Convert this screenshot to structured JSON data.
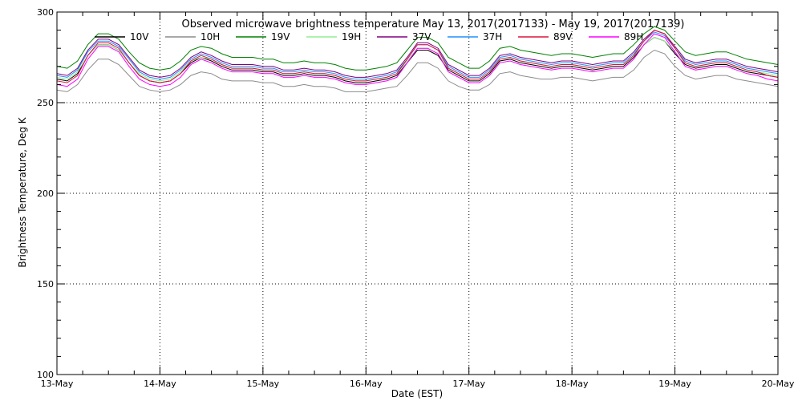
{
  "chart_data": {
    "type": "line",
    "title": "Observed microwave brightness temperature May 13, 2017(2017133) - May 19, 2017(2017139)",
    "xlabel": "Date (EST)",
    "ylabel": "Brightness Temperature, Deg K",
    "x_ticks": [
      "13-May",
      "14-May",
      "15-May",
      "16-May",
      "17-May",
      "18-May",
      "19-May",
      "20-May"
    ],
    "x_range_days": [
      0,
      7
    ],
    "ylim": [
      100,
      300
    ],
    "y_ticks": [
      100,
      150,
      200,
      250,
      300
    ],
    "grid": "dotted, major ticks",
    "legend_placement": "top",
    "x_days": [
      0,
      0.1,
      0.2,
      0.3,
      0.4,
      0.5,
      0.6,
      0.7,
      0.8,
      0.9,
      1.0,
      1.1,
      1.2,
      1.3,
      1.4,
      1.5,
      1.6,
      1.7,
      1.8,
      1.9,
      2.0,
      2.1,
      2.2,
      2.3,
      2.4,
      2.5,
      2.6,
      2.7,
      2.8,
      2.9,
      3.0,
      3.1,
      3.2,
      3.3,
      3.4,
      3.5,
      3.6,
      3.7,
      3.8,
      3.9,
      4.0,
      4.1,
      4.2,
      4.3,
      4.4,
      4.5,
      4.6,
      4.7,
      4.8,
      4.9,
      5.0,
      5.1,
      5.2,
      5.3,
      5.4,
      5.5,
      5.6,
      5.7,
      5.8,
      5.9,
      6.0,
      6.1,
      6.2,
      6.3,
      6.4,
      6.5,
      6.6,
      6.7,
      6.8,
      6.9,
      7.0
    ],
    "series": [
      {
        "name": "10V",
        "color": "#000000",
        "values": [
          263,
          262,
          266,
          276,
          282,
          282,
          279,
          272,
          265,
          262,
          261,
          262,
          266,
          272,
          275,
          273,
          270,
          268,
          268,
          268,
          267,
          267,
          265,
          265,
          266,
          265,
          265,
          264,
          262,
          261,
          261,
          262,
          263,
          265,
          272,
          279,
          279,
          276,
          268,
          265,
          262,
          262,
          266,
          273,
          274,
          272,
          271,
          270,
          269,
          270,
          270,
          269,
          268,
          269,
          270,
          270,
          275,
          282,
          286,
          284,
          277,
          271,
          269,
          270,
          271,
          271,
          269,
          267,
          266,
          265,
          264
        ]
      },
      {
        "name": "10H",
        "color": "#8c8c8c",
        "values": [
          257,
          256,
          260,
          268,
          274,
          274,
          271,
          265,
          259,
          257,
          256,
          257,
          260,
          265,
          267,
          266,
          263,
          262,
          262,
          262,
          261,
          261,
          259,
          259,
          260,
          259,
          259,
          258,
          256,
          256,
          256,
          257,
          258,
          259,
          265,
          272,
          272,
          269,
          262,
          259,
          257,
          257,
          260,
          266,
          267,
          265,
          264,
          263,
          263,
          264,
          264,
          263,
          262,
          263,
          264,
          264,
          268,
          275,
          279,
          277,
          270,
          265,
          263,
          264,
          265,
          265,
          263,
          262,
          261,
          260,
          259
        ]
      },
      {
        "name": "19V",
        "color": "#008000",
        "values": [
          270,
          269,
          273,
          282,
          288,
          288,
          285,
          278,
          272,
          269,
          268,
          269,
          273,
          279,
          281,
          280,
          277,
          275,
          275,
          275,
          274,
          274,
          272,
          272,
          273,
          272,
          272,
          271,
          269,
          268,
          268,
          269,
          270,
          272,
          279,
          286,
          286,
          283,
          275,
          272,
          269,
          269,
          273,
          280,
          281,
          279,
          278,
          277,
          276,
          277,
          277,
          276,
          275,
          276,
          277,
          277,
          282,
          288,
          292,
          290,
          284,
          278,
          276,
          277,
          278,
          278,
          276,
          274,
          273,
          272,
          271
        ]
      },
      {
        "name": "19H",
        "color": "#90ee90",
        "values": [
          264,
          263,
          267,
          276,
          282,
          282,
          279,
          272,
          266,
          263,
          262,
          263,
          267,
          273,
          275,
          274,
          271,
          269,
          269,
          269,
          268,
          268,
          266,
          266,
          267,
          266,
          266,
          265,
          263,
          262,
          262,
          263,
          264,
          266,
          273,
          280,
          280,
          277,
          269,
          266,
          263,
          263,
          267,
          274,
          275,
          273,
          272,
          271,
          270,
          271,
          271,
          270,
          269,
          270,
          271,
          271,
          276,
          282,
          286,
          284,
          278,
          272,
          270,
          271,
          272,
          272,
          270,
          268,
          267,
          266,
          265
        ]
      },
      {
        "name": "37V",
        "color": "#800080",
        "values": [
          266,
          265,
          269,
          279,
          285,
          285,
          282,
          275,
          268,
          265,
          264,
          265,
          269,
          275,
          278,
          276,
          273,
          271,
          271,
          271,
          270,
          270,
          268,
          268,
          269,
          268,
          268,
          267,
          265,
          264,
          264,
          265,
          266,
          268,
          275,
          283,
          283,
          280,
          271,
          268,
          265,
          265,
          269,
          276,
          277,
          275,
          274,
          273,
          272,
          273,
          273,
          272,
          271,
          272,
          273,
          273,
          278,
          285,
          290,
          288,
          281,
          274,
          272,
          273,
          274,
          274,
          272,
          270,
          269,
          268,
          267
        ]
      },
      {
        "name": "37H",
        "color": "#1e90ff",
        "values": [
          265,
          264,
          268,
          278,
          284,
          284,
          281,
          274,
          267,
          264,
          263,
          264,
          268,
          274,
          277,
          275,
          272,
          270,
          270,
          270,
          269,
          269,
          267,
          267,
          268,
          267,
          267,
          266,
          264,
          263,
          263,
          264,
          265,
          267,
          274,
          282,
          282,
          279,
          270,
          267,
          264,
          264,
          268,
          275,
          276,
          274,
          273,
          272,
          271,
          272,
          272,
          271,
          270,
          271,
          272,
          272,
          277,
          284,
          289,
          287,
          280,
          273,
          271,
          272,
          273,
          273,
          271,
          269,
          268,
          267,
          266
        ]
      },
      {
        "name": "89V",
        "color": "#dc143c",
        "values": [
          262,
          261,
          265,
          276,
          283,
          283,
          280,
          272,
          265,
          262,
          261,
          262,
          266,
          273,
          276,
          274,
          271,
          269,
          269,
          269,
          268,
          268,
          266,
          266,
          267,
          266,
          266,
          265,
          263,
          262,
          262,
          263,
          264,
          266,
          274,
          282,
          282,
          279,
          269,
          266,
          263,
          263,
          267,
          274,
          275,
          273,
          272,
          271,
          270,
          271,
          271,
          270,
          269,
          270,
          271,
          271,
          276,
          284,
          290,
          288,
          280,
          272,
          270,
          271,
          272,
          272,
          270,
          268,
          267,
          265,
          264
        ]
      },
      {
        "name": "89H",
        "color": "#ff00ff",
        "values": [
          260,
          259,
          263,
          274,
          281,
          281,
          278,
          270,
          263,
          260,
          259,
          260,
          264,
          271,
          274,
          272,
          269,
          267,
          267,
          267,
          266,
          266,
          264,
          264,
          265,
          264,
          264,
          263,
          261,
          260,
          260,
          261,
          262,
          264,
          272,
          280,
          280,
          277,
          267,
          264,
          261,
          261,
          265,
          272,
          273,
          271,
          270,
          269,
          268,
          269,
          269,
          268,
          267,
          268,
          269,
          269,
          274,
          282,
          288,
          286,
          278,
          270,
          268,
          269,
          270,
          270,
          268,
          266,
          265,
          263,
          262
        ]
      }
    ]
  }
}
